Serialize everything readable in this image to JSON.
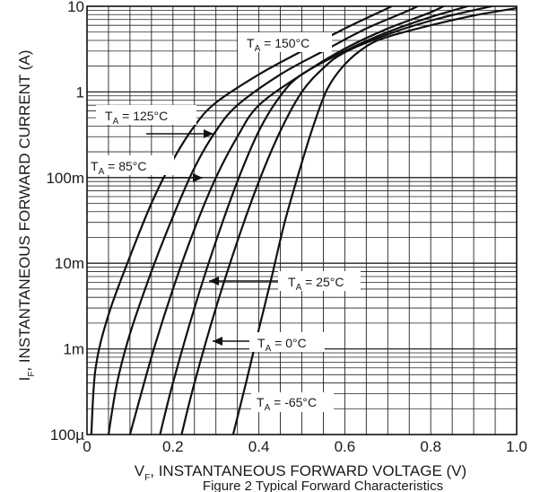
{
  "chart_data": {
    "type": "line",
    "title": "",
    "caption": "Figure 2 Typical Forward Characteristics",
    "xlabel": {
      "main": "V",
      "sub": "F",
      "rest": ", INSTANTANEOUS FORWARD VOLTAGE (V)"
    },
    "ylabel": {
      "main": "I",
      "sub": "F",
      "rest": ", INSTANTANEOUS FORWARD CURRENT (A)"
    },
    "xlim": [
      0,
      1.0
    ],
    "ylim": [
      0.0001,
      10
    ],
    "yscale": "log",
    "grid": true,
    "x_ticks": [
      {
        "value": 0,
        "label": "0"
      },
      {
        "value": 0.2,
        "label": "0.2"
      },
      {
        "value": 0.4,
        "label": "0.4"
      },
      {
        "value": 0.6,
        "label": "0.6"
      },
      {
        "value": 0.8,
        "label": "0.8"
      },
      {
        "value": 1.0,
        "label": "1.0"
      }
    ],
    "y_ticks": [
      {
        "value": 0.0001,
        "label": "100µ"
      },
      {
        "value": 0.001,
        "label": "1m"
      },
      {
        "value": 0.01,
        "label": "10m"
      },
      {
        "value": 0.1,
        "label": "100m"
      },
      {
        "value": 1,
        "label": "1"
      },
      {
        "value": 10,
        "label": "10"
      }
    ],
    "series": [
      {
        "name": "T_A = 150°C",
        "label": {
          "main": "T",
          "sub": "A",
          "rest": " = 150°C"
        },
        "points": [
          [
            0.01,
            0.0001
          ],
          [
            0.02,
            0.0006
          ],
          [
            0.05,
            0.0025
          ],
          [
            0.1,
            0.012
          ],
          [
            0.15,
            0.05
          ],
          [
            0.2,
            0.16
          ],
          [
            0.25,
            0.4
          ],
          [
            0.3,
            0.75
          ],
          [
            0.4,
            1.6
          ],
          [
            0.5,
            3.0
          ],
          [
            0.6,
            5.5
          ],
          [
            0.7,
            9.5
          ],
          [
            0.74,
            12
          ]
        ]
      },
      {
        "name": "T_A = 125°C",
        "label": {
          "main": "T",
          "sub": "A",
          "rest": " = 125°C"
        },
        "points": [
          [
            0.05,
            0.0001
          ],
          [
            0.07,
            0.0004
          ],
          [
            0.1,
            0.0015
          ],
          [
            0.15,
            0.008
          ],
          [
            0.2,
            0.035
          ],
          [
            0.25,
            0.13
          ],
          [
            0.3,
            0.35
          ],
          [
            0.35,
            0.7
          ],
          [
            0.45,
            1.6
          ],
          [
            0.55,
            3.0
          ],
          [
            0.65,
            5.5
          ],
          [
            0.75,
            9.0
          ],
          [
            0.8,
            12
          ]
        ]
      },
      {
        "name": "T_A = 85°C",
        "label": {
          "main": "T",
          "sub": "A",
          "rest": " = 85°C"
        },
        "points": [
          [
            0.1,
            0.0001
          ],
          [
            0.15,
            0.0008
          ],
          [
            0.2,
            0.005
          ],
          [
            0.25,
            0.025
          ],
          [
            0.3,
            0.1
          ],
          [
            0.35,
            0.3
          ],
          [
            0.4,
            0.7
          ],
          [
            0.5,
            1.6
          ],
          [
            0.6,
            3.2
          ],
          [
            0.7,
            5.5
          ],
          [
            0.8,
            8.5
          ],
          [
            0.86,
            12
          ]
        ]
      },
      {
        "name": "T_A = 25°C",
        "label": {
          "main": "T",
          "sub": "A",
          "rest": " = 25°C"
        },
        "points": [
          [
            0.17,
            0.0001
          ],
          [
            0.2,
            0.0004
          ],
          [
            0.25,
            0.003
          ],
          [
            0.3,
            0.018
          ],
          [
            0.35,
            0.09
          ],
          [
            0.4,
            0.35
          ],
          [
            0.45,
            0.9
          ],
          [
            0.5,
            1.6
          ],
          [
            0.6,
            3.0
          ],
          [
            0.7,
            5.0
          ],
          [
            0.8,
            7.5
          ],
          [
            0.9,
            10.5
          ],
          [
            0.93,
            12
          ]
        ]
      },
      {
        "name": "T_A = 0°C",
        "label": {
          "main": "T",
          "sub": "A",
          "rest": " = 0°C"
        },
        "points": [
          [
            0.22,
            0.0001
          ],
          [
            0.25,
            0.0004
          ],
          [
            0.3,
            0.003
          ],
          [
            0.35,
            0.018
          ],
          [
            0.4,
            0.09
          ],
          [
            0.45,
            0.35
          ],
          [
            0.5,
            1.0
          ],
          [
            0.55,
            1.9
          ],
          [
            0.6,
            2.9
          ],
          [
            0.7,
            4.7
          ],
          [
            0.8,
            6.8
          ],
          [
            0.9,
            9.0
          ],
          [
            1.0,
            11.5
          ]
        ]
      },
      {
        "name": "T_A = -65°C",
        "label": {
          "main": "T",
          "sub": "A",
          "rest": " = -65°C"
        },
        "points": [
          [
            0.34,
            0.0001
          ],
          [
            0.37,
            0.0004
          ],
          [
            0.4,
            0.0017
          ],
          [
            0.43,
            0.007
          ],
          [
            0.46,
            0.03
          ],
          [
            0.5,
            0.15
          ],
          [
            0.53,
            0.45
          ],
          [
            0.56,
            1.1
          ],
          [
            0.6,
            2.1
          ],
          [
            0.65,
            3.4
          ],
          [
            0.7,
            4.4
          ],
          [
            0.8,
            6.0
          ],
          [
            0.9,
            7.8
          ],
          [
            1.0,
            9.5
          ]
        ]
      }
    ]
  }
}
